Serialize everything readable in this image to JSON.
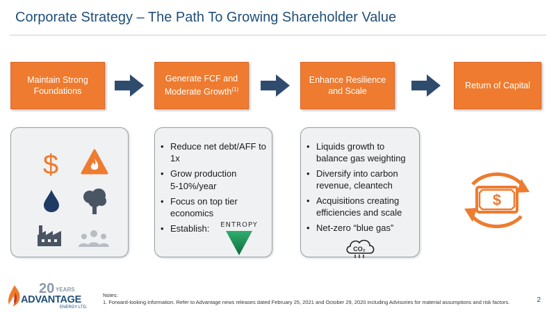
{
  "slide": {
    "title": "Corporate Strategy – The Path To Growing Shareholder Value",
    "page_number": "2"
  },
  "steps": [
    {
      "label": "Maintain Strong Foundations",
      "superscript": ""
    },
    {
      "label": "Generate FCF and Moderate Growth",
      "superscript": "(1)"
    },
    {
      "label": "Enhance Resilience and Scale",
      "superscript": ""
    },
    {
      "label": "Return of Capital",
      "superscript": ""
    }
  ],
  "panel1": {
    "icons": [
      "dollar-icon",
      "fire-hazard-icon",
      "water-drop-icon",
      "tree-icon",
      "factory-icon",
      "people-icon"
    ]
  },
  "panel2": {
    "bullets": [
      "Reduce net debt/AFF to 1x",
      "Grow production",
      "5-10%/year",
      "Focus on top tier economics",
      "Establish:"
    ],
    "entropy_logo_text": "ENTROPY"
  },
  "panel3": {
    "bullets": [
      "Liquids growth to balance gas weighting",
      "Diversify into carbon revenue, cleantech",
      "Acquisitions creating efficiencies and scale",
      "Net-zero “blue gas”"
    ],
    "co2_label": "CO2"
  },
  "notes": {
    "heading": "Notes:",
    "line1": "1. Forward-looking information. Refer to Advantage news releases dated February 25, 2021 and October 29, 2020 including Advisories for material assumptions and risk factors."
  },
  "logo": {
    "years_number": "20",
    "years_word": "YEARS",
    "name": "ADVANTAGE",
    "sub": "ENERGY LTD."
  },
  "colors": {
    "accent_orange": "#ee7b2f",
    "navy": "#1f4e79",
    "arrow_blue": "#2f4b6e",
    "icon_gray": "#4a5563"
  }
}
